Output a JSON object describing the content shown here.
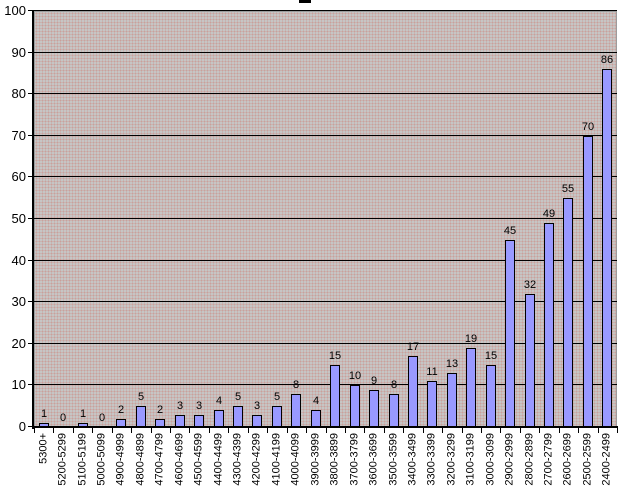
{
  "chart_data": {
    "type": "bar",
    "title": "",
    "xlabel": "",
    "ylabel": "",
    "categories": [
      "5300+",
      "5200-5299",
      "5100-5199",
      "5000-5099",
      "4900-4999",
      "4800-4899",
      "4700-4799",
      "4600-4699",
      "4500-4599",
      "4400-4499",
      "4300-4399",
      "4200-4299",
      "4100-4199",
      "4000-4099",
      "3900-3999",
      "3800-3899",
      "3700-3799",
      "3600-3699",
      "3500-3599",
      "3400-3499",
      "3300-3399",
      "3200-3299",
      "3100-3199",
      "3000-3099",
      "2900-2999",
      "2800-2899",
      "2700-2799",
      "2600-2699",
      "2500-2599",
      "2400-2499"
    ],
    "values": [
      1,
      0,
      1,
      0,
      2,
      5,
      2,
      3,
      3,
      4,
      5,
      3,
      5,
      8,
      4,
      15,
      10,
      9,
      8,
      17,
      11,
      13,
      19,
      15,
      45,
      32,
      49,
      55,
      70,
      86
    ],
    "yticks": [
      0,
      10,
      20,
      30,
      40,
      50,
      60,
      70,
      80,
      90,
      100
    ],
    "ylim": [
      0,
      100
    ],
    "grid": true,
    "legend": false,
    "data_labels": true,
    "colors": {
      "bar_fill": "#9999ff",
      "bar_border": "#000000",
      "plot_background": "#c6c6c6",
      "plot_border": "#9c9c9c",
      "gridline": "#000000",
      "axis": "#000000",
      "text": "#000000",
      "page_background": "#ffffff"
    }
  }
}
